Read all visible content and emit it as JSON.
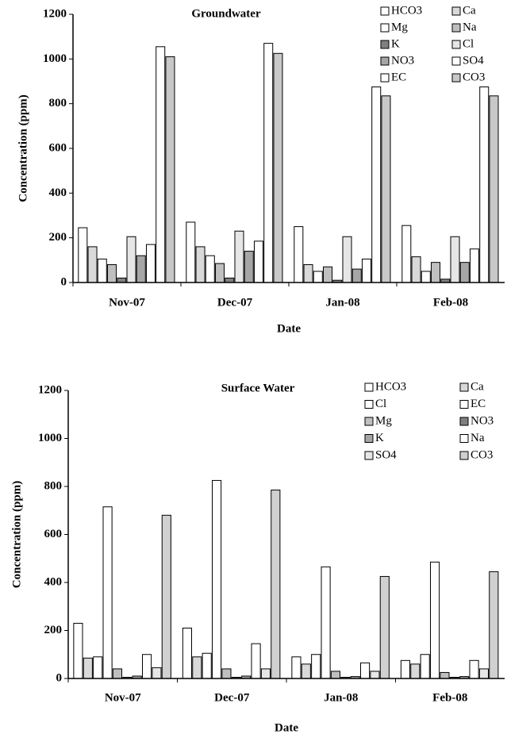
{
  "chart_data": [
    {
      "type": "bar",
      "title": "Groundwater",
      "x_label": "Date",
      "y_label": "Concentration (ppm)",
      "categories": [
        "Nov-07",
        "Dec-07",
        "Jan-08",
        "Feb-08"
      ],
      "ylim": [
        0,
        1200
      ],
      "yticks": [
        0,
        200,
        400,
        600,
        800,
        1000,
        1200
      ],
      "legend": "upper right",
      "series": [
        {
          "name": "HCO3",
          "color": "#ffffff",
          "values": [
            245,
            270,
            250,
            255
          ]
        },
        {
          "name": "Ca",
          "color": "#d9d9d9",
          "values": [
            160,
            160,
            80,
            115
          ]
        },
        {
          "name": "Mg",
          "color": "#ffffff",
          "values": [
            105,
            120,
            50,
            50
          ]
        },
        {
          "name": "Na",
          "color": "#bfbfbf",
          "values": [
            80,
            85,
            70,
            90
          ]
        },
        {
          "name": "K",
          "color": "#808080",
          "values": [
            20,
            20,
            10,
            15
          ]
        },
        {
          "name": "Cl",
          "color": "#e6e6e6",
          "values": [
            205,
            230,
            205,
            205
          ]
        },
        {
          "name": "NO3",
          "color": "#a6a6a6",
          "values": [
            120,
            140,
            60,
            90
          ]
        },
        {
          "name": "SO4",
          "color": "#ffffff",
          "values": [
            170,
            185,
            105,
            150
          ]
        },
        {
          "name": "EC",
          "color": "#ffffff",
          "values": [
            1055,
            1070,
            875,
            875
          ]
        },
        {
          "name": "CO3",
          "color": "#c8c8c8",
          "values": [
            1010,
            1025,
            835,
            835
          ]
        }
      ]
    },
    {
      "type": "bar",
      "title": "Surface Water",
      "x_label": "Date",
      "y_label": "Concentration (ppm)",
      "categories": [
        "Nov-07",
        "Dec-07",
        "Jan-08",
        "Feb-08"
      ],
      "ylim": [
        0,
        1200
      ],
      "yticks": [
        0,
        200,
        400,
        600,
        800,
        1000,
        1200
      ],
      "legend": "upper right",
      "series": [
        {
          "name": "HCO3",
          "color": "#ffffff",
          "values": [
            230,
            210,
            90,
            75
          ]
        },
        {
          "name": "Ca",
          "color": "#d9d9d9",
          "values": [
            85,
            90,
            60,
            60
          ]
        },
        {
          "name": "Cl",
          "color": "#ffffff",
          "values": [
            90,
            105,
            100,
            100
          ]
        },
        {
          "name": "EC",
          "color": "#ffffff",
          "values": [
            715,
            825,
            465,
            485
          ]
        },
        {
          "name": "Mg",
          "color": "#bfbfbf",
          "values": [
            40,
            40,
            30,
            25
          ]
        },
        {
          "name": "NO3",
          "color": "#808080",
          "values": [
            5,
            5,
            5,
            5
          ]
        },
        {
          "name": "K",
          "color": "#a6a6a6",
          "values": [
            10,
            10,
            8,
            8
          ]
        },
        {
          "name": "Na",
          "color": "#ffffff",
          "values": [
            100,
            145,
            65,
            75
          ]
        },
        {
          "name": "SO4",
          "color": "#e6e6e6",
          "values": [
            45,
            40,
            30,
            40
          ]
        },
        {
          "name": "CO3",
          "color": "#d0d0d0",
          "values": [
            680,
            785,
            425,
            445
          ]
        }
      ]
    }
  ]
}
